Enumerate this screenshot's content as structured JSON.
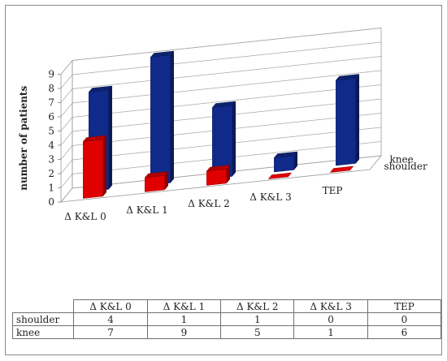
{
  "chart_data": {
    "type": "bar",
    "subtype": "3d-clustered-depth",
    "categories": [
      "Δ K&L 0",
      "Δ K&L 1",
      "Δ K&L 2",
      "Δ K&L 3",
      "TEP"
    ],
    "series": [
      {
        "name": "shoulder",
        "values": [
          4,
          1,
          1,
          0,
          0
        ],
        "color": "#e00000"
      },
      {
        "name": "knee",
        "values": [
          7,
          9,
          5,
          1,
          6
        ],
        "color": "#0f2a8a"
      }
    ],
    "ylabel": "number of patients",
    "ylim": [
      0,
      9
    ],
    "yticks": [
      "0",
      "1",
      "2",
      "3",
      "4",
      "5",
      "6",
      "7",
      "8",
      "9"
    ],
    "grid": true,
    "data_table": true
  }
}
